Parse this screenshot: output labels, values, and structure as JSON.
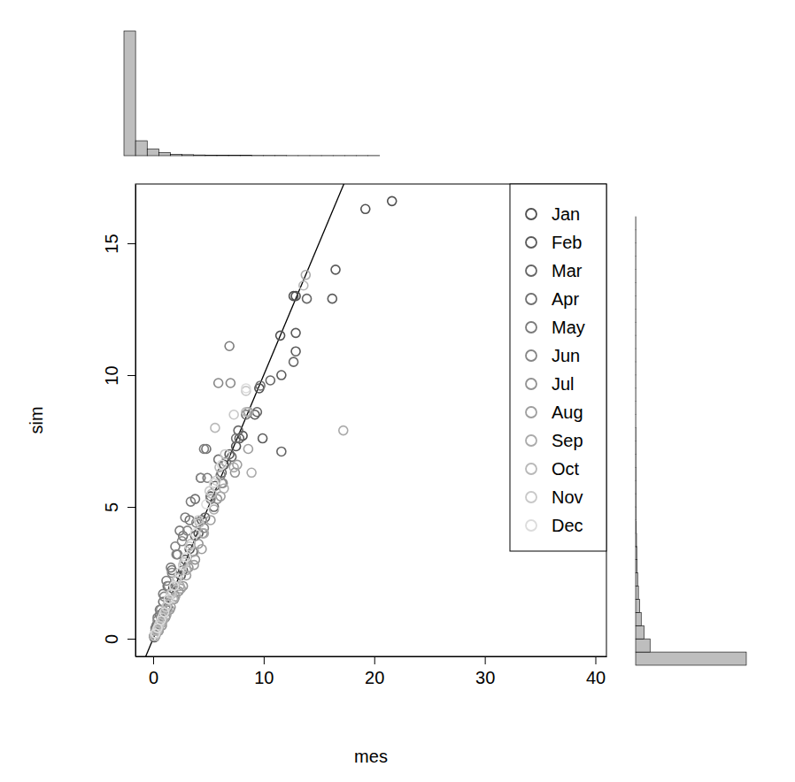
{
  "chart_data": {
    "type": "scatter",
    "x_label": "mes",
    "y_label": "sim",
    "xlim": [
      -1.6,
      41.0
    ],
    "ylim": [
      -0.67,
      17.25
    ],
    "xticks": [
      0,
      10,
      20,
      30,
      40
    ],
    "yticks": [
      0,
      5,
      10,
      15
    ],
    "legend": "topright",
    "marker": "circle",
    "abline": {
      "intercept": 0,
      "slope": 1
    },
    "series": [
      {
        "name": "Jan",
        "color": "#505050",
        "x": [
          21.6,
          19.2,
          12.9,
          12.7,
          11.5,
          9.6,
          8.1,
          7.5,
          6.4,
          5.2,
          4.1,
          3.3,
          2.5,
          1.8,
          1.2,
          0.7,
          0.4,
          0.1
        ],
        "values": [
          16.6,
          16.3,
          13.0,
          13.0,
          11.5,
          9.5,
          7.7,
          7.3,
          6.6,
          5.4,
          4.0,
          3.4,
          2.4,
          1.9,
          1.1,
          0.8,
          0.5,
          0.1
        ]
      },
      {
        "name": "Feb",
        "color": "#5a5a5a",
        "x": [
          16.5,
          16.2,
          12.9,
          12.9,
          11.6,
          9.9,
          9.2,
          7.8,
          6.9,
          5.6,
          4.4,
          3.6,
          2.7,
          1.9,
          1.3,
          0.8,
          0.3,
          0.1
        ],
        "values": [
          14.0,
          12.9,
          11.6,
          10.9,
          10.0,
          7.6,
          8.5,
          7.6,
          7.0,
          5.8,
          4.5,
          3.3,
          2.6,
          2.0,
          1.2,
          0.7,
          0.4,
          0.05
        ]
      },
      {
        "name": "Mar",
        "color": "#656565",
        "x": [
          13.9,
          12.7,
          11.6,
          10.6,
          9.4,
          8.6,
          7.7,
          7.1,
          6.2,
          5.5,
          4.7,
          3.8,
          2.9,
          2.1,
          1.4,
          0.9,
          0.5,
          0.2
        ],
        "values": [
          12.9,
          10.5,
          7.1,
          9.8,
          8.6,
          8.6,
          7.9,
          6.9,
          6.3,
          5.0,
          4.6,
          3.9,
          3.0,
          2.2,
          1.5,
          1.0,
          0.5,
          0.2
        ]
      },
      {
        "name": "Apr",
        "color": "#707070",
        "x": [
          9.7,
          8.4,
          7.5,
          6.6,
          5.9,
          4.8,
          4.3,
          3.8,
          3.3,
          2.7,
          2.2,
          1.7,
          1.3,
          0.9,
          0.6,
          0.3,
          0.1
        ],
        "values": [
          9.6,
          8.5,
          7.6,
          6.7,
          6.8,
          7.2,
          6.1,
          5.3,
          4.5,
          3.9,
          3.2,
          2.6,
          2.0,
          1.4,
          0.9,
          0.5,
          0.1
        ]
      },
      {
        "name": "May",
        "color": "#7b7b7b",
        "x": [
          6.9,
          4.6,
          4.9,
          3.4,
          2.9,
          2.4,
          2.0,
          1.6,
          1.2,
          0.9,
          0.6,
          0.4,
          0.2,
          0.1,
          5.2,
          6.1
        ],
        "values": [
          11.1,
          7.2,
          6.1,
          5.2,
          4.6,
          4.1,
          3.5,
          2.7,
          2.2,
          1.7,
          1.1,
          0.8,
          0.4,
          0.1,
          5.3,
          6.2
        ]
      },
      {
        "name": "Jun",
        "color": "#868686",
        "x": [
          5.9,
          7.0,
          4.3,
          3.9,
          3.1,
          2.6,
          2.1,
          1.7,
          1.4,
          1.0,
          0.7,
          0.4,
          0.2,
          0.1,
          6.3,
          4.6
        ],
        "values": [
          9.7,
          9.7,
          6.1,
          4.4,
          4.1,
          3.7,
          3.2,
          2.5,
          2.0,
          1.6,
          1.1,
          0.7,
          0.3,
          0.1,
          5.9,
          4.2
        ]
      },
      {
        "name": "Jul",
        "color": "#929292",
        "x": [
          5.8,
          4.5,
          3.8,
          3.2,
          2.7,
          2.3,
          1.9,
          1.5,
          1.1,
          0.8,
          0.5,
          0.2,
          6.2,
          7.4,
          4.1
        ],
        "values": [
          5.3,
          4.0,
          3.0,
          2.7,
          2.0,
          1.8,
          1.5,
          1.1,
          0.8,
          0.5,
          0.3,
          0.1,
          5.9,
          6.3,
          3.6
        ]
      },
      {
        "name": "Aug",
        "color": "#9e9e9e",
        "x": [
          6.1,
          5.2,
          4.4,
          3.7,
          3.0,
          2.5,
          2.0,
          1.6,
          1.2,
          0.8,
          0.5,
          0.2,
          7.6,
          8.6,
          5.5
        ],
        "values": [
          5.4,
          4.5,
          3.4,
          2.8,
          2.4,
          1.9,
          1.6,
          1.2,
          0.9,
          0.6,
          0.3,
          0.1,
          6.6,
          7.2,
          5.9
        ]
      },
      {
        "name": "Sep",
        "color": "#aaaaaa",
        "x": [
          17.2,
          8.6,
          7.3,
          6.4,
          5.5,
          4.6,
          3.7,
          3.0,
          2.4,
          1.8,
          1.3,
          0.9,
          0.5,
          0.2,
          13.8,
          8.9
        ],
        "values": [
          7.9,
          8.6,
          6.5,
          5.7,
          4.9,
          4.0,
          3.3,
          2.6,
          2.0,
          1.5,
          1.1,
          0.7,
          0.4,
          0.1,
          13.8,
          6.3
        ]
      },
      {
        "name": "Oct",
        "color": "#b8b8b8",
        "x": [
          13.6,
          8.4,
          5.3,
          4.2,
          3.4,
          2.8,
          2.2,
          1.7,
          1.3,
          0.9,
          0.6,
          0.3,
          0.1,
          6.0,
          5.6
        ],
        "values": [
          13.4,
          8.6,
          5.5,
          4.4,
          3.6,
          2.9,
          2.3,
          1.7,
          1.3,
          0.9,
          0.6,
          0.3,
          0.1,
          6.5,
          8.0
        ]
      },
      {
        "name": "Nov",
        "color": "#c8c8c8",
        "x": [
          8.4,
          6.5,
          5.1,
          4.1,
          3.3,
          2.7,
          2.1,
          1.6,
          1.2,
          0.8,
          0.5,
          0.2,
          5.7,
          7.3
        ],
        "values": [
          9.4,
          7.0,
          5.6,
          4.5,
          3.5,
          2.8,
          2.2,
          1.7,
          1.2,
          0.8,
          0.5,
          0.2,
          6.0,
          8.5
        ]
      },
      {
        "name": "Dec",
        "color": "#dcdcdc",
        "x": [
          8.4,
          6.2,
          4.8,
          3.8,
          3.0,
          2.4,
          1.9,
          1.4,
          1.0,
          0.7,
          0.4,
          0.2,
          5.5
        ],
        "values": [
          9.5,
          6.6,
          5.1,
          4.0,
          3.1,
          2.5,
          2.0,
          1.5,
          1.0,
          0.7,
          0.4,
          0.2,
          5.9
        ]
      }
    ],
    "x_histogram": {
      "bins": [
        0,
        1,
        2,
        3,
        4,
        5,
        6,
        7,
        8,
        9,
        10,
        11,
        12,
        13,
        14,
        15,
        16,
        17,
        18,
        19,
        20,
        21,
        22,
        23,
        24,
        25,
        26,
        27,
        28,
        29,
        30,
        31,
        32,
        33,
        34,
        35,
        36,
        37,
        38,
        39,
        40
      ],
      "counts": [
        1000,
        120,
        55,
        25,
        12,
        8,
        6,
        5,
        4,
        3,
        3,
        2,
        2,
        2,
        1,
        1,
        1,
        1,
        1,
        1,
        1,
        1,
        0,
        0,
        0,
        0,
        0,
        0,
        0,
        0,
        0,
        0,
        0,
        0,
        0,
        0,
        0,
        0,
        0,
        0
      ]
    },
    "y_histogram": {
      "bins": [
        0,
        0.5,
        1,
        1.5,
        2,
        2.5,
        3,
        3.5,
        4,
        4.5,
        5,
        5.5,
        6,
        6.5,
        7,
        7.5,
        8,
        8.5,
        9,
        9.5,
        10,
        10.5,
        11,
        11.5,
        12,
        12.5,
        13,
        13.5,
        14,
        14.5,
        15,
        15.5,
        16,
        16.5,
        17,
        17.5
      ],
      "counts": [
        1000,
        130,
        75,
        50,
        35,
        25,
        18,
        14,
        10,
        8,
        6,
        5,
        4,
        3,
        3,
        2,
        2,
        2,
        1,
        1,
        1,
        1,
        1,
        1,
        1,
        1,
        1,
        1,
        1,
        1,
        1,
        1,
        1,
        1,
        0
      ]
    }
  }
}
